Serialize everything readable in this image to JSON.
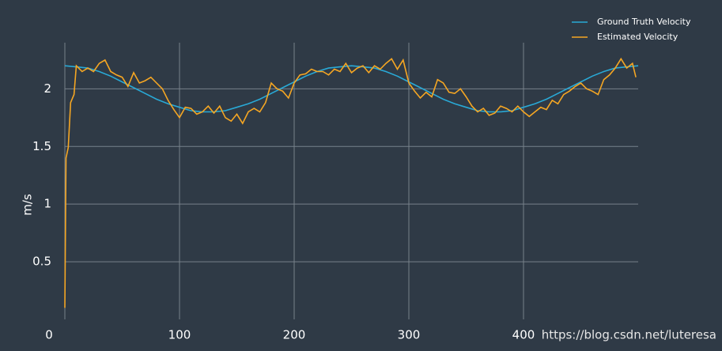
{
  "chart_data": {
    "type": "line",
    "y_label": "m/s",
    "watermark": "https://blog.csdn.net/luteresa",
    "xlim": [
      0,
      500
    ],
    "xticks": [
      0,
      100,
      200,
      300,
      400
    ],
    "ylim": [
      0,
      2.4
    ],
    "yticks": [
      0.5,
      1,
      1.5,
      2
    ],
    "grid": true,
    "legend": "upper right",
    "series": [
      {
        "name": "Ground Truth Velocity",
        "color": "#29a9d6",
        "x": [
          0,
          10,
          20,
          30,
          40,
          50,
          60,
          70,
          80,
          90,
          100,
          110,
          120,
          130,
          140,
          150,
          160,
          170,
          180,
          190,
          200,
          210,
          220,
          230,
          240,
          250,
          260,
          270,
          280,
          290,
          300,
          310,
          320,
          330,
          340,
          350,
          360,
          370,
          380,
          390,
          400,
          410,
          420,
          430,
          440,
          450,
          460,
          470,
          480,
          490,
          500
        ],
        "values": [
          2.2,
          2.19,
          2.18,
          2.15,
          2.11,
          2.06,
          2.01,
          1.96,
          1.91,
          1.87,
          1.84,
          1.81,
          1.8,
          1.8,
          1.81,
          1.84,
          1.87,
          1.91,
          1.96,
          2.01,
          2.06,
          2.11,
          2.15,
          2.18,
          2.19,
          2.2,
          2.19,
          2.18,
          2.15,
          2.11,
          2.06,
          2.01,
          1.96,
          1.91,
          1.87,
          1.84,
          1.81,
          1.8,
          1.8,
          1.81,
          1.84,
          1.87,
          1.91,
          1.96,
          2.01,
          2.06,
          2.11,
          2.15,
          2.18,
          2.19,
          2.2
        ]
      },
      {
        "name": "Estimated Velocity",
        "color": "#f5a623",
        "x": [
          0,
          1,
          3,
          5,
          8,
          10,
          15,
          20,
          25,
          30,
          35,
          40,
          45,
          50,
          55,
          60,
          65,
          70,
          75,
          80,
          85,
          90,
          95,
          100,
          105,
          110,
          115,
          120,
          125,
          130,
          135,
          140,
          145,
          150,
          155,
          160,
          165,
          170,
          175,
          180,
          185,
          190,
          195,
          200,
          205,
          210,
          215,
          220,
          225,
          230,
          235,
          240,
          245,
          250,
          255,
          260,
          265,
          270,
          275,
          280,
          285,
          290,
          295,
          300,
          305,
          310,
          315,
          320,
          325,
          330,
          335,
          340,
          345,
          350,
          355,
          360,
          365,
          370,
          375,
          380,
          385,
          390,
          395,
          400,
          405,
          410,
          415,
          420,
          425,
          430,
          435,
          440,
          445,
          450,
          455,
          460,
          465,
          470,
          475,
          480,
          485,
          490,
          495,
          498
        ],
        "values": [
          0.1,
          1.4,
          1.49,
          1.88,
          1.95,
          2.2,
          2.15,
          2.18,
          2.15,
          2.22,
          2.25,
          2.15,
          2.12,
          2.1,
          2.02,
          2.14,
          2.05,
          2.07,
          2.1,
          2.05,
          2.0,
          1.9,
          1.82,
          1.75,
          1.84,
          1.83,
          1.78,
          1.8,
          1.85,
          1.79,
          1.85,
          1.75,
          1.72,
          1.78,
          1.7,
          1.8,
          1.83,
          1.8,
          1.88,
          2.05,
          2.0,
          1.98,
          1.92,
          2.05,
          2.12,
          2.13,
          2.17,
          2.15,
          2.15,
          2.12,
          2.17,
          2.15,
          2.22,
          2.14,
          2.18,
          2.2,
          2.14,
          2.2,
          2.17,
          2.22,
          2.26,
          2.17,
          2.25,
          2.05,
          1.98,
          1.92,
          1.97,
          1.93,
          2.08,
          2.05,
          1.97,
          1.96,
          2.0,
          1.93,
          1.85,
          1.8,
          1.83,
          1.77,
          1.79,
          1.85,
          1.83,
          1.8,
          1.85,
          1.8,
          1.76,
          1.8,
          1.84,
          1.82,
          1.9,
          1.87,
          1.95,
          1.98,
          2.02,
          2.05,
          2.0,
          1.98,
          1.95,
          2.08,
          2.12,
          2.18,
          2.26,
          2.18,
          2.22,
          2.1
        ]
      }
    ]
  }
}
